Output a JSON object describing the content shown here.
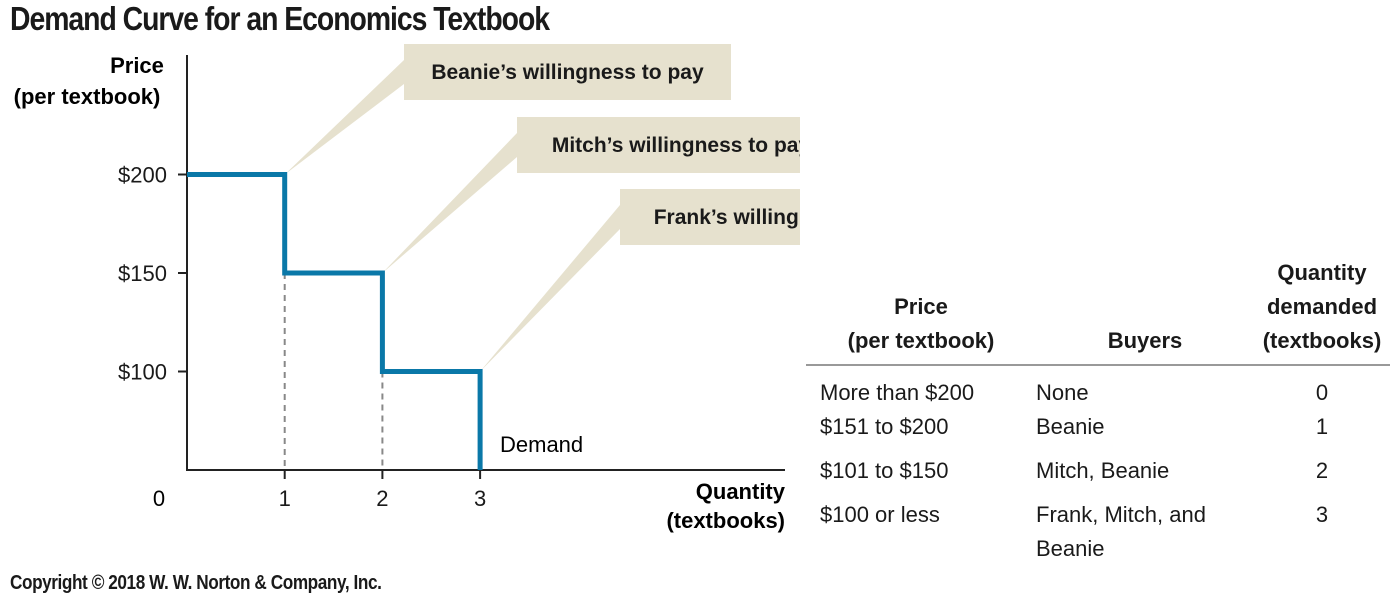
{
  "title": "Demand Curve for an Economics Textbook",
  "copyright": "Copyright © 2018 W. W. Norton & Company, Inc.",
  "colors": {
    "curve": "#0a78a8",
    "callout": "#e6e1ce",
    "axis": "#222222",
    "guide": "#888888"
  },
  "chart_data": {
    "type": "line",
    "title": "Demand Curve for an Economics Textbook",
    "ylabel_line1": "Price",
    "ylabel_line2": "(per textbook)",
    "xlabel_line1": "Quantity",
    "xlabel_line2": "(textbooks)",
    "origin_label": "0",
    "xlim": [
      0,
      6
    ],
    "ylim": [
      50,
      250
    ],
    "x_ticks": [
      {
        "value": 1,
        "label": "1"
      },
      {
        "value": 2,
        "label": "2"
      },
      {
        "value": 3,
        "label": "3"
      }
    ],
    "y_ticks": [
      {
        "value": 200,
        "label": "$200"
      },
      {
        "value": 150,
        "label": "$150"
      },
      {
        "value": 100,
        "label": "$100"
      }
    ],
    "series": [
      {
        "name": "Demand",
        "points": [
          [
            0,
            200
          ],
          [
            1,
            200
          ],
          [
            1,
            150
          ],
          [
            2,
            150
          ],
          [
            2,
            100
          ],
          [
            3,
            100
          ],
          [
            3,
            50
          ]
        ]
      }
    ],
    "guides": [
      {
        "x": 1,
        "y": 150
      },
      {
        "x": 2,
        "y": 100
      }
    ],
    "annotations": [
      {
        "text": "Beanie’s willingness to pay",
        "x": 1,
        "y": 200
      },
      {
        "text": "Mitch’s willingness to pay",
        "x": 2,
        "y": 150
      },
      {
        "text": "Frank’s willingness to pay",
        "x": 3,
        "y": 100
      }
    ],
    "curve_label": "Demand"
  },
  "table": {
    "headers": {
      "price_line1": "Price",
      "price_line2": "(per textbook)",
      "buyers": "Buyers",
      "qty_line1": "Quantity",
      "qty_line2": "demanded",
      "qty_line3": "(textbooks)"
    },
    "rows": [
      {
        "price": "More than $200",
        "buyers": "None",
        "quantity": "0"
      },
      {
        "price": "$151 to $200",
        "buyers": "Beanie",
        "quantity": "1"
      },
      {
        "price": "$101 to $150",
        "buyers": "Mitch, Beanie",
        "quantity": "2"
      },
      {
        "price": "$100 or less",
        "buyers": "Frank, Mitch, and Beanie",
        "quantity": "3"
      }
    ]
  }
}
